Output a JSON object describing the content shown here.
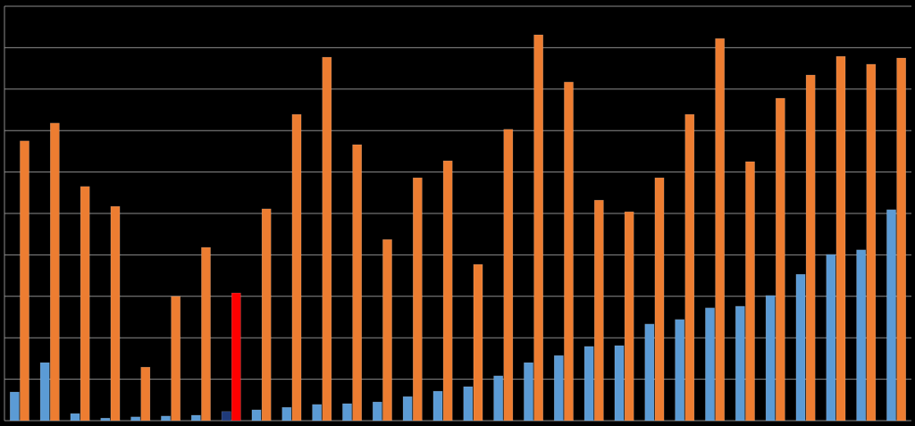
{
  "chart_data": {
    "type": "bar",
    "categories": [
      null,
      null,
      null,
      null,
      null,
      null,
      null,
      null,
      null,
      null,
      null,
      null,
      null,
      null,
      null,
      null,
      null,
      null,
      null,
      null,
      null,
      null,
      null,
      null,
      null,
      null,
      null,
      null,
      null,
      null
    ],
    "series": [
      {
        "color": "#5b9bd5",
        "colors": [
          "#5b9bd5",
          "#5b9bd5",
          "#5b9bd5",
          "#5b9bd5",
          "#5b9bd5",
          "#5b9bd5",
          "#5b9bd5",
          "#1f3a7a",
          "#5b9bd5",
          "#5b9bd5",
          "#5b9bd5",
          "#5b9bd5",
          "#5b9bd5",
          "#5b9bd5",
          "#5b9bd5",
          "#5b9bd5",
          "#5b9bd5",
          "#5b9bd5",
          "#5b9bd5",
          "#5b9bd5",
          "#5b9bd5",
          "#5b9bd5",
          "#5b9bd5",
          "#5b9bd5",
          "#5b9bd5",
          "#5b9bd5",
          "#5b9bd5",
          "#5b9bd5",
          "#5b9bd5",
          "#5b9bd5"
        ],
        "values": [
          0.69,
          1.4,
          0.17,
          0.06,
          0.09,
          0.11,
          0.13,
          0.22,
          0.26,
          0.32,
          0.39,
          0.41,
          0.45,
          0.58,
          0.71,
          0.82,
          1.08,
          1.4,
          1.57,
          1.79,
          1.81,
          2.33,
          2.44,
          2.72,
          2.76,
          3.02,
          3.53,
          4.01,
          4.12,
          5.09
        ]
      },
      {
        "color": "#ed7d31",
        "colors": [
          "#ed7d31",
          "#ed7d31",
          "#ed7d31",
          "#ed7d31",
          "#ed7d31",
          "#ed7d31",
          "#ed7d31",
          "#ff0000",
          "#ed7d31",
          "#ed7d31",
          "#ed7d31",
          "#ed7d31",
          "#ed7d31",
          "#ed7d31",
          "#ed7d31",
          "#ed7d31",
          "#ed7d31",
          "#ed7d31",
          "#ed7d31",
          "#ed7d31",
          "#ed7d31",
          "#ed7d31",
          "#ed7d31",
          "#ed7d31",
          "#ed7d31",
          "#ed7d31",
          "#ed7d31",
          "#ed7d31",
          "#ed7d31",
          "#ed7d31"
        ],
        "values": [
          6.75,
          7.18,
          5.65,
          5.17,
          1.29,
          3.0,
          4.18,
          3.08,
          5.11,
          7.39,
          8.77,
          6.66,
          4.37,
          5.86,
          6.27,
          3.77,
          7.03,
          9.31,
          8.17,
          5.32,
          5.04,
          5.86,
          7.39,
          9.22,
          6.25,
          7.78,
          8.34,
          8.79,
          8.6,
          8.75
        ]
      }
    ],
    "ylim": [
      0,
      10
    ],
    "yticks": [
      0,
      1,
      2,
      3,
      4,
      5,
      6,
      7,
      8,
      9,
      10
    ],
    "grid": true
  }
}
